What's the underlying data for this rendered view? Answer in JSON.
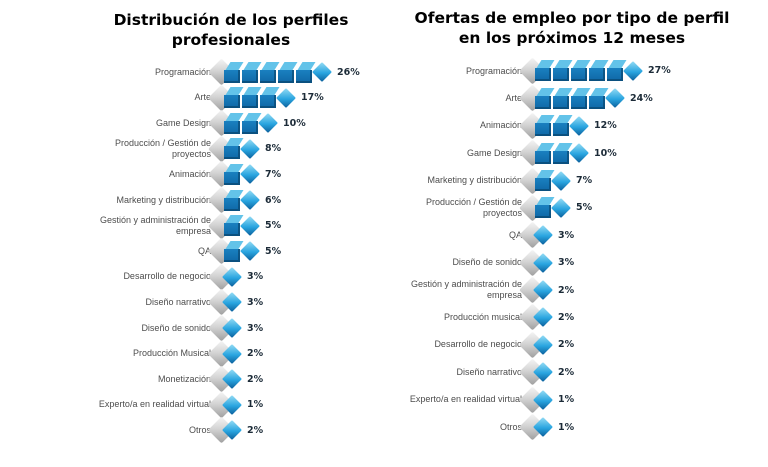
{
  "page": {
    "background": "#ffffff"
  },
  "colors": {
    "cube_top": "#63c3e9",
    "cube_front": "#1374b5",
    "cube_shadow": "#0b4e7e",
    "tip_light": "#96dcf4",
    "tip_main": "#219fdd",
    "tip_dark": "#0c5f9b",
    "spine_light": "#f5f5f5",
    "spine_dark": "#9e9e9e",
    "title_text": "#000000",
    "category_text": "#4d4d4d",
    "value_text": "#1c2b38"
  },
  "chart_data": [
    {
      "type": "bar",
      "orientation": "horizontal",
      "title": "Distribución de los perfiles profesionales",
      "title_lines": [
        "Distribución de los perfiles",
        "profesionales"
      ],
      "unit": "%",
      "segment_unit_percent": 5,
      "xlim": [
        0,
        30
      ],
      "categories": [
        "Programación",
        "Arte",
        "Game Design",
        "Producción / Gestión de proyectos",
        "Animación",
        "Marketing y distribución",
        "Gestión y administración de empresa",
        "QA",
        "Desarrollo de negocio",
        "Diseño narrativo",
        "Diseño de sonido",
        "Producción Musical",
        "Monetización",
        "Experto/a en realidad virtual",
        "Otros"
      ],
      "values": [
        26,
        17,
        10,
        8,
        7,
        6,
        5,
        5,
        3,
        3,
        3,
        2,
        2,
        1,
        2
      ],
      "value_labels": [
        "26%",
        "17%",
        "10%",
        "8%",
        "7%",
        "6%",
        "5%",
        "5%",
        "3%",
        "3%",
        "3%",
        "2%",
        "2%",
        "1%",
        "2%"
      ]
    },
    {
      "type": "bar",
      "orientation": "horizontal",
      "title": "Ofertas de empleo por tipo de perfil en los próximos 12 meses",
      "title_lines": [
        "Ofertas de empleo por tipo de perfil",
        "en los próximos 12 meses"
      ],
      "unit": "%",
      "segment_unit_percent": 5,
      "xlim": [
        0,
        30
      ],
      "categories": [
        "Programación",
        "Arte",
        "Animación",
        "Game Design",
        "Marketing y distribución",
        "Producción / Gestión de proyectos",
        "QA",
        "Diseño de sonido",
        "Gestión y administración de empresa",
        "Producción musical",
        "Desarrollo de negocio",
        "Diseño narrativo",
        "Experto/a en realidad virtual",
        "Otros"
      ],
      "values": [
        27,
        24,
        12,
        10,
        7,
        5,
        3,
        3,
        2,
        2,
        2,
        2,
        1,
        1
      ],
      "value_labels": [
        "27%",
        "24%",
        "12%",
        "10%",
        "7%",
        "5%",
        "3%",
        "3%",
        "2%",
        "2%",
        "2%",
        "2%",
        "1%",
        "1%"
      ]
    }
  ]
}
